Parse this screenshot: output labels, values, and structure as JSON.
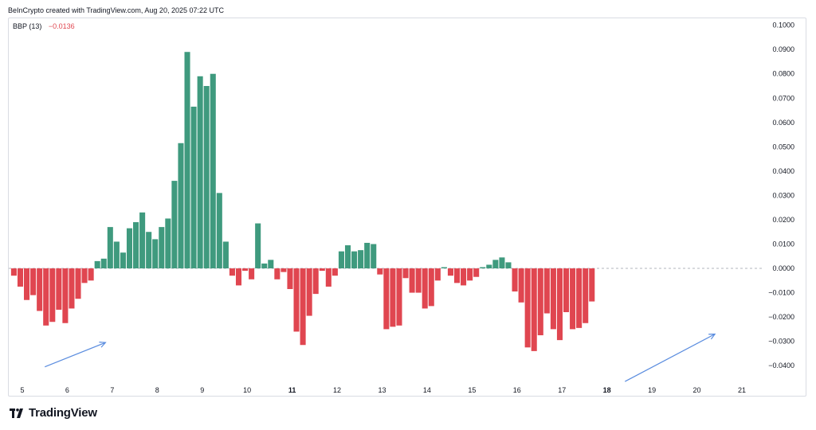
{
  "header": {
    "text": "BeInCrypto created with TradingView.com, Aug 20, 2025 07:22 UTC"
  },
  "legend": {
    "name": "BBP (13)",
    "value": "−0.0136"
  },
  "logo": {
    "text": "TradingView"
  },
  "colors": {
    "positive": "#3f9a7e",
    "negative": "#e04650",
    "arrow": "#5b8ddf",
    "zero_line": "#b2b5be"
  },
  "chart_data": {
    "type": "bar",
    "indicator": "BBP (13)",
    "ylim": [
      -0.0455,
      0.1025
    ],
    "y_ticks": [
      "0.1000",
      "0.0900",
      "0.0800",
      "0.0700",
      "0.0600",
      "0.0500",
      "0.0400",
      "0.0300",
      "0.0200",
      "0.0100",
      "0.0000",
      "−0.0100",
      "−0.0200",
      "−0.0300",
      "−0.0400"
    ],
    "x_ticks": [
      {
        "label": "5",
        "bold": false
      },
      {
        "label": "6",
        "bold": false
      },
      {
        "label": "7",
        "bold": false
      },
      {
        "label": "8",
        "bold": false
      },
      {
        "label": "9",
        "bold": false
      },
      {
        "label": "10",
        "bold": false
      },
      {
        "label": "11",
        "bold": true
      },
      {
        "label": "12",
        "bold": false
      },
      {
        "label": "13",
        "bold": false
      },
      {
        "label": "14",
        "bold": false
      },
      {
        "label": "15",
        "bold": false
      },
      {
        "label": "16",
        "bold": false
      },
      {
        "label": "17",
        "bold": false
      },
      {
        "label": "18",
        "bold": true
      },
      {
        "label": "19",
        "bold": false
      },
      {
        "label": "20",
        "bold": false
      },
      {
        "label": "21",
        "bold": false
      }
    ],
    "x_start": 4.75,
    "bar_step": 0.1428,
    "values": [
      -0.003,
      -0.0075,
      -0.013,
      -0.011,
      -0.0175,
      -0.0235,
      -0.022,
      -0.017,
      -0.0225,
      -0.0165,
      -0.0125,
      -0.006,
      -0.005,
      0.003,
      0.004,
      0.017,
      0.011,
      0.0065,
      0.0165,
      0.019,
      0.023,
      0.015,
      0.012,
      0.017,
      0.0205,
      0.036,
      0.0515,
      0.089,
      0.0665,
      0.079,
      0.075,
      0.08,
      0.031,
      0.011,
      -0.003,
      -0.007,
      -0.001,
      -0.0045,
      0.0185,
      0.002,
      0.0035,
      -0.0045,
      -0.0015,
      -0.0085,
      -0.026,
      -0.0315,
      -0.0195,
      -0.0105,
      -0.001,
      -0.0075,
      -0.003,
      0.007,
      0.0095,
      0.007,
      0.0075,
      0.0105,
      0.01,
      -0.0025,
      -0.025,
      -0.024,
      -0.0235,
      -0.004,
      -0.01,
      -0.01,
      -0.0165,
      -0.0155,
      -0.005,
      0.0005,
      -0.003,
      -0.006,
      -0.007,
      -0.005,
      -0.0035,
      0.0005,
      0.0015,
      0.0035,
      0.0045,
      0.0025,
      -0.0095,
      -0.014,
      -0.0325,
      -0.034,
      -0.0275,
      -0.0185,
      -0.025,
      -0.0295,
      -0.018,
      -0.025,
      -0.0245,
      -0.0225,
      -0.0136
    ],
    "arrows": [
      {
        "from": [
          5.5,
          -0.0405
        ],
        "to": [
          6.85,
          -0.0305
        ]
      },
      {
        "from": [
          18.4,
          -0.0465
        ],
        "to": [
          20.4,
          -0.027
        ]
      }
    ],
    "grid": false,
    "zero_line": "dashed"
  }
}
